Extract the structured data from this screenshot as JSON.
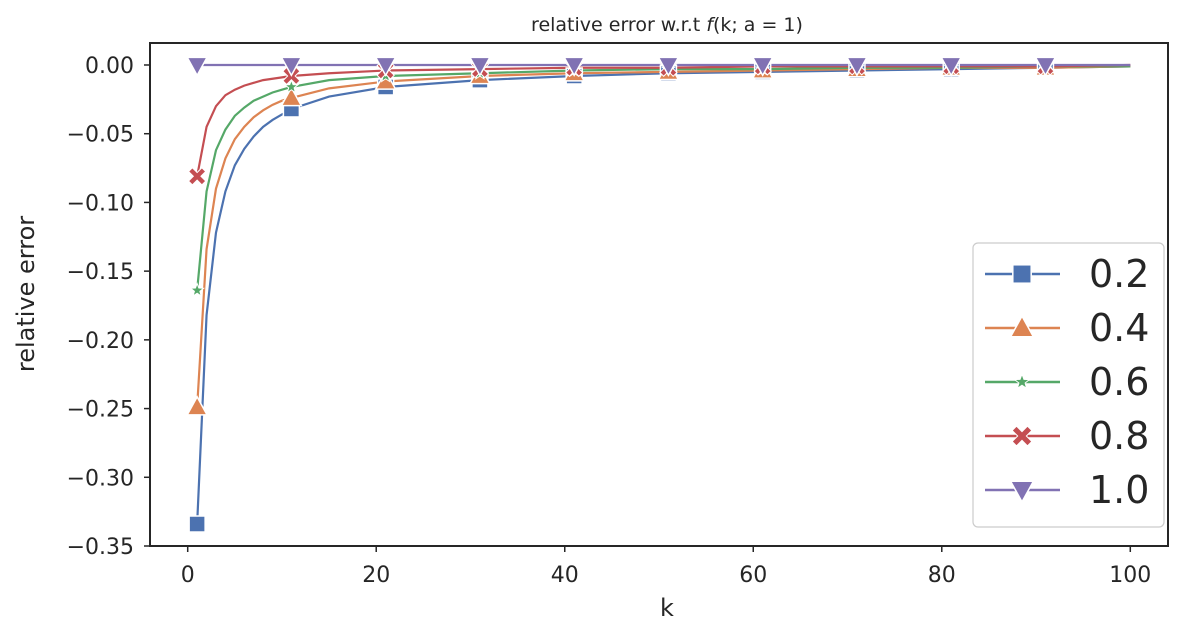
{
  "chart_data": {
    "type": "line",
    "title": "relative error w.r.t f(k; a = 1)",
    "title_parts": {
      "prefix": "relative error w.r.t ",
      "func": "f",
      "args": "(k; a = 1)"
    },
    "xlabel": "k",
    "ylabel": "relative error",
    "xlim": [
      -4,
      104
    ],
    "ylim": [
      -0.35,
      0.016
    ],
    "xticks": [
      0,
      20,
      40,
      60,
      80,
      100
    ],
    "yticks": [
      0.0,
      -0.05,
      -0.1,
      -0.15,
      -0.2,
      -0.25,
      -0.3,
      -0.35
    ],
    "xtick_labels": [
      "0",
      "20",
      "40",
      "60",
      "80",
      "100"
    ],
    "ytick_labels": [
      "0.00",
      "−0.05",
      "−0.10",
      "−0.15",
      "−0.20",
      "−0.25",
      "−0.30",
      "−0.35"
    ],
    "grid": false,
    "legend_position": "lower-right",
    "marker_k": [
      1,
      11,
      21,
      31,
      41,
      51,
      61,
      71,
      81,
      91
    ],
    "series": [
      {
        "name": "0.2",
        "color": "#4c72b0",
        "marker": "square",
        "x": [
          1,
          2,
          3,
          4,
          5,
          6,
          7,
          8,
          9,
          10,
          11,
          15,
          21,
          31,
          41,
          51,
          61,
          71,
          81,
          91,
          100
        ],
        "y": [
          -0.334,
          -0.182,
          -0.122,
          -0.092,
          -0.073,
          -0.061,
          -0.052,
          -0.045,
          -0.04,
          -0.036,
          -0.032,
          -0.023,
          -0.016,
          -0.011,
          -0.008,
          -0.006,
          -0.005,
          -0.004,
          -0.003,
          -0.002,
          -0.001
        ]
      },
      {
        "name": "0.4",
        "color": "#dd8452",
        "marker": "triangle-up",
        "x": [
          1,
          2,
          3,
          4,
          5,
          6,
          7,
          8,
          9,
          10,
          11,
          15,
          21,
          31,
          41,
          51,
          61,
          71,
          81,
          91,
          100
        ],
        "y": [
          -0.249,
          -0.134,
          -0.09,
          -0.068,
          -0.054,
          -0.045,
          -0.038,
          -0.033,
          -0.029,
          -0.026,
          -0.024,
          -0.017,
          -0.012,
          -0.008,
          -0.006,
          -0.005,
          -0.004,
          -0.003,
          -0.002,
          -0.002,
          -0.001
        ]
      },
      {
        "name": "0.6",
        "color": "#55a868",
        "marker": "star",
        "x": [
          1,
          2,
          3,
          4,
          5,
          6,
          7,
          8,
          9,
          10,
          11,
          15,
          21,
          31,
          41,
          51,
          61,
          71,
          81,
          91,
          100
        ],
        "y": [
          -0.164,
          -0.092,
          -0.062,
          -0.047,
          -0.037,
          -0.031,
          -0.026,
          -0.023,
          -0.02,
          -0.018,
          -0.016,
          -0.011,
          -0.008,
          -0.006,
          -0.004,
          -0.003,
          -0.003,
          -0.002,
          -0.002,
          -0.001,
          -0.001
        ]
      },
      {
        "name": "0.8",
        "color": "#c44e52",
        "marker": "x",
        "x": [
          1,
          2,
          3,
          4,
          5,
          6,
          7,
          8,
          9,
          10,
          11,
          15,
          21,
          31,
          41,
          51,
          61,
          71,
          81,
          91,
          100
        ],
        "y": [
          -0.081,
          -0.045,
          -0.03,
          -0.022,
          -0.018,
          -0.015,
          -0.013,
          -0.011,
          -0.01,
          -0.009,
          -0.008,
          -0.006,
          -0.004,
          -0.003,
          -0.002,
          -0.002,
          -0.001,
          -0.001,
          -0.001,
          -0.001,
          0.0
        ]
      },
      {
        "name": "1.0",
        "color": "#8172b3",
        "marker": "triangle-down",
        "x": [
          1,
          100
        ],
        "y": [
          0.0,
          0.0
        ]
      }
    ]
  }
}
